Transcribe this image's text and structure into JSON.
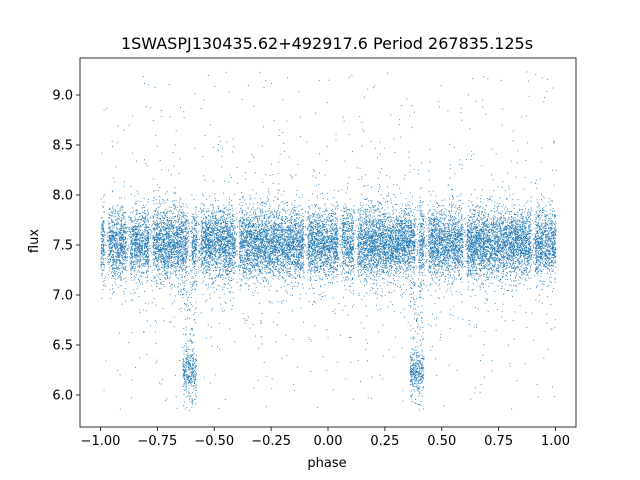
{
  "chart_data": {
    "type": "scatter",
    "title": "1SWASPJ130435.62+492917.6 Period 267835.125s",
    "xlabel": "phase",
    "ylabel": "flux",
    "xlim": [
      -1.09,
      1.09
    ],
    "ylim": [
      5.68,
      9.37
    ],
    "xticks": [
      -1.0,
      -0.75,
      -0.5,
      -0.25,
      0.0,
      0.25,
      0.5,
      0.75,
      1.0
    ],
    "xtick_labels": [
      "−1.00",
      "−0.75",
      "−0.50",
      "−0.25",
      "0.00",
      "0.25",
      "0.50",
      "0.75",
      "1.00"
    ],
    "yticks": [
      6.0,
      6.5,
      7.0,
      7.5,
      8.0,
      8.5,
      9.0
    ],
    "ytick_labels": [
      "6.0",
      "6.5",
      "7.0",
      "7.5",
      "8.0",
      "8.5",
      "9.0"
    ],
    "grid": false,
    "legend": "none",
    "marker_color": "#1f77b4",
    "phase_range": [
      -1.0,
      1.0
    ],
    "period_s": 267835.125,
    "baseline_flux": 7.52,
    "core_spread": 0.17,
    "phase_gaps": [
      -0.975,
      -0.88,
      -0.78,
      -0.61,
      -0.57,
      -0.4,
      -0.1,
      0.05,
      0.12,
      0.39,
      0.43,
      0.6,
      0.9
    ],
    "low_state_clusters": [
      {
        "x_range": [
          -0.64,
          -0.58
        ],
        "y_center": 6.24,
        "y_spread": 0.1
      },
      {
        "x_range": [
          0.36,
          0.42
        ],
        "y_center": 6.24,
        "y_spread": 0.1
      }
    ],
    "approx_point_count": 20000
  }
}
